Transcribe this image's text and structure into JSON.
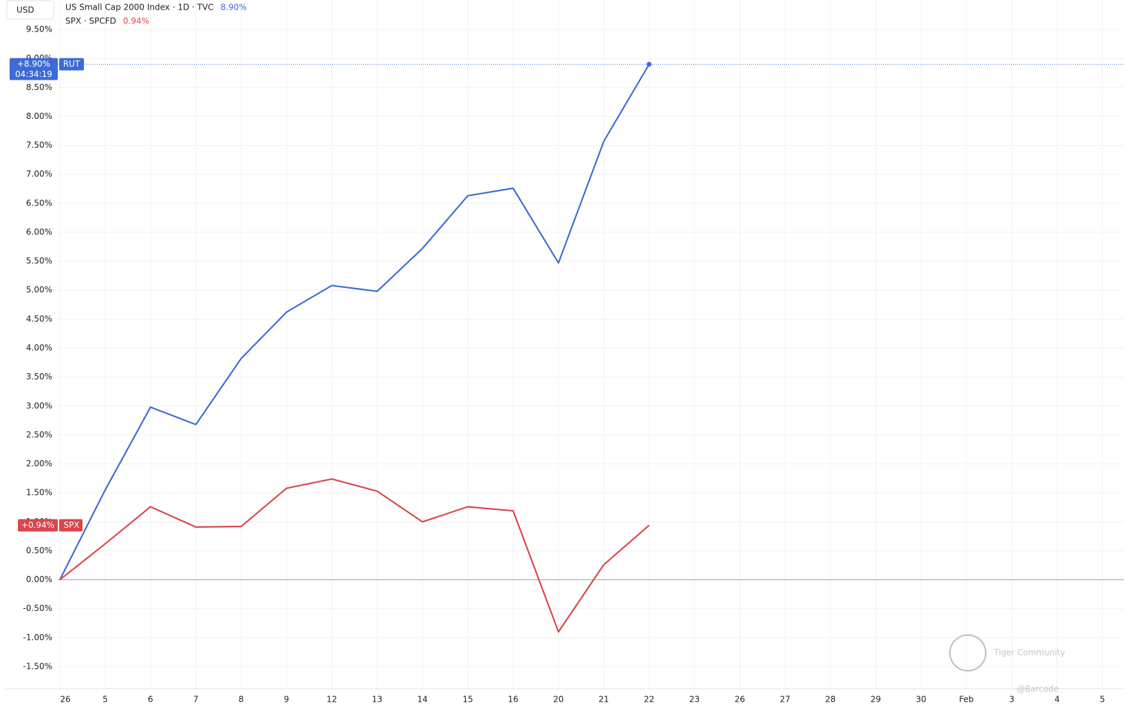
{
  "chart_data": {
    "type": "line",
    "currency": "USD",
    "categories": [
      "26",
      "5",
      "6",
      "7",
      "8",
      "9",
      "12",
      "13",
      "14",
      "15",
      "16",
      "20",
      "21",
      "22",
      "23",
      "26",
      "27",
      "28",
      "29",
      "30",
      "Feb",
      "3",
      "4",
      "5"
    ],
    "series": [
      {
        "name": "US Small Cap 2000 Index · 1D · TVC",
        "ticker": "RUT",
        "color": "#3d6bd6",
        "last_label": "8.90%",
        "badge_label": "+8.90%",
        "countdown": "04:34:19",
        "values": [
          0,
          1.55,
          2.98,
          2.68,
          3.82,
          4.62,
          5.08,
          4.98,
          5.72,
          6.63,
          6.76,
          5.47,
          7.57,
          8.9,
          null,
          null,
          null,
          null,
          null,
          null,
          null,
          null,
          null,
          null
        ]
      },
      {
        "name": "SPX · SPCFD",
        "ticker": "SPX",
        "color": "#d9464c",
        "last_label": "0.94%",
        "badge_label": "+0.94%",
        "values": [
          0,
          0.62,
          1.26,
          0.91,
          0.92,
          1.58,
          1.74,
          1.53,
          1.0,
          1.26,
          1.19,
          -0.9,
          0.26,
          0.94,
          null,
          null,
          null,
          null,
          null,
          null,
          null,
          null,
          null,
          null
        ]
      }
    ],
    "ylim": [
      -1.88,
      10.01
    ],
    "yticks": [
      {
        "value": 9.5,
        "label": "9.50%"
      },
      {
        "value": 9,
        "label": "9.00%"
      },
      {
        "value": 8.5,
        "label": "8.50%"
      },
      {
        "value": 8,
        "label": "8.00%"
      },
      {
        "value": 7.5,
        "label": "7.50%"
      },
      {
        "value": 7,
        "label": "7.00%"
      },
      {
        "value": 6.5,
        "label": "6.50%"
      },
      {
        "value": 6,
        "label": "6.00%"
      },
      {
        "value": 5.5,
        "label": "5.50%"
      },
      {
        "value": 5,
        "label": "5.00%"
      },
      {
        "value": 4.5,
        "label": "4.50%"
      },
      {
        "value": 4,
        "label": "4.00%"
      },
      {
        "value": 3.5,
        "label": "3.50%"
      },
      {
        "value": 3,
        "label": "3.00%"
      },
      {
        "value": 2.5,
        "label": "2.50%"
      },
      {
        "value": 2,
        "label": "2.00%"
      },
      {
        "value": 1.5,
        "label": "1.50%"
      },
      {
        "value": 1,
        "label": "1.00%"
      },
      {
        "value": 0.5,
        "label": "0.50%"
      },
      {
        "value": 0,
        "label": "0.00%"
      },
      {
        "value": -0.5,
        "label": "-0.50%"
      },
      {
        "value": -1,
        "label": "-1.00%"
      },
      {
        "value": -1.5,
        "label": "-1.50%"
      }
    ],
    "grid": true,
    "watermark": [
      "Tiger Community",
      "@Barcode"
    ]
  }
}
